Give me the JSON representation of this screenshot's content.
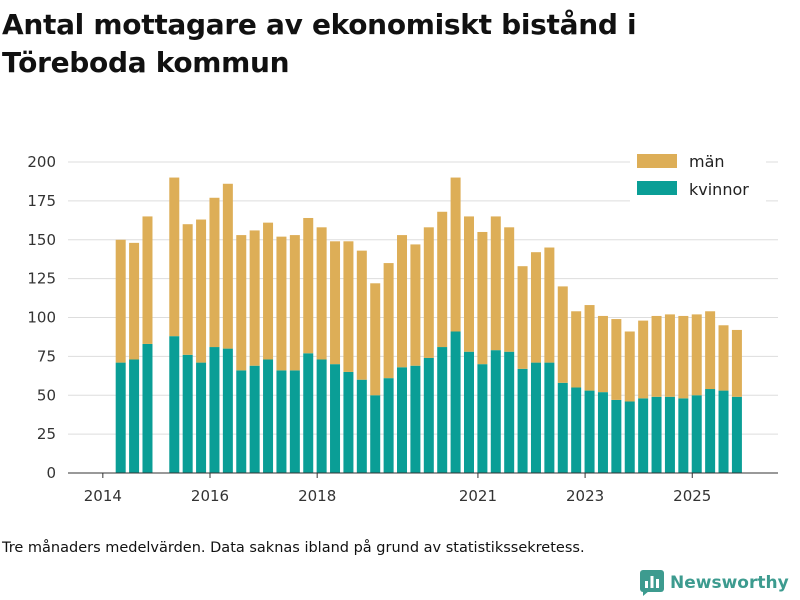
{
  "title": {
    "line1": "Antal mottagare av ekonomiskt bistånd i",
    "line2": "Töreboda kommun"
  },
  "footer": "Tre månaders medelvärden. Data saknas ibland på grund av statistikssekretess.",
  "logo": {
    "text": "Newsworthy",
    "icon": "bar-chart-icon"
  },
  "colors": {
    "man": "#ddae57",
    "kvinnor": "#0a9e96",
    "grid": "#dddddd",
    "axis": "#333333",
    "brand": "#3d9b8f"
  },
  "legend": {
    "man": "män",
    "kvinnor": "kvinnor"
  },
  "chart_data": {
    "type": "bar",
    "stacked": true,
    "title": "Antal mottagare av ekonomiskt bistånd i Töreboda kommun",
    "xlabel": "",
    "ylabel": "",
    "ylim": [
      0,
      200
    ],
    "xlim": [
      2013.35,
      2026.6
    ],
    "yticks": [
      0,
      25,
      50,
      75,
      100,
      125,
      150,
      175,
      200
    ],
    "xticks": [
      {
        "label": "2014",
        "value": 2014
      },
      {
        "label": "2016",
        "value": 2016
      },
      {
        "label": "2018",
        "value": 2018
      },
      {
        "label": "2021",
        "value": 2021
      },
      {
        "label": "2023",
        "value": 2023
      },
      {
        "label": "2025",
        "value": 2025
      }
    ],
    "legend_position": "top-right",
    "grid": true,
    "categories": [
      "2014-05",
      "2014-08",
      "2014-11",
      "2015-02",
      "2015-05",
      "2015-08",
      "2015-11",
      "2016-02",
      "2016-05",
      "2016-08",
      "2016-11",
      "2017-02",
      "2017-05",
      "2017-08",
      "2017-11",
      "2018-02",
      "2018-05",
      "2018-08",
      "2018-11",
      "2019-02",
      "2019-05",
      "2019-08",
      "2019-11",
      "2020-02",
      "2020-05",
      "2020-08",
      "2020-11",
      "2021-02",
      "2021-05",
      "2021-08",
      "2021-11",
      "2022-02",
      "2022-05",
      "2022-08",
      "2022-11",
      "2023-02",
      "2023-05",
      "2023-08",
      "2023-11",
      "2024-02",
      "2024-05",
      "2024-08",
      "2024-11",
      "2025-02",
      "2025-05",
      "2025-08",
      "2025-11"
    ],
    "series": [
      {
        "name": "kvinnor",
        "values": [
          71,
          73,
          83,
          null,
          88,
          76,
          71,
          81,
          80,
          66,
          69,
          73,
          66,
          66,
          77,
          73,
          70,
          65,
          60,
          50,
          61,
          68,
          69,
          74,
          81,
          91,
          78,
          70,
          79,
          78,
          67,
          71,
          71,
          58,
          55,
          53,
          52,
          47,
          46,
          48,
          49,
          49,
          48,
          50,
          54,
          53,
          49
        ]
      },
      {
        "name": "män",
        "values": [
          79,
          75,
          82,
          null,
          102,
          84,
          92,
          96,
          106,
          87,
          87,
          88,
          86,
          87,
          87,
          85,
          79,
          84,
          83,
          72,
          74,
          85,
          78,
          84,
          87,
          99,
          87,
          85,
          86,
          80,
          66,
          71,
          74,
          62,
          49,
          55,
          49,
          52,
          45,
          50,
          52,
          53,
          53,
          52,
          50,
          42,
          43
        ]
      }
    ]
  }
}
